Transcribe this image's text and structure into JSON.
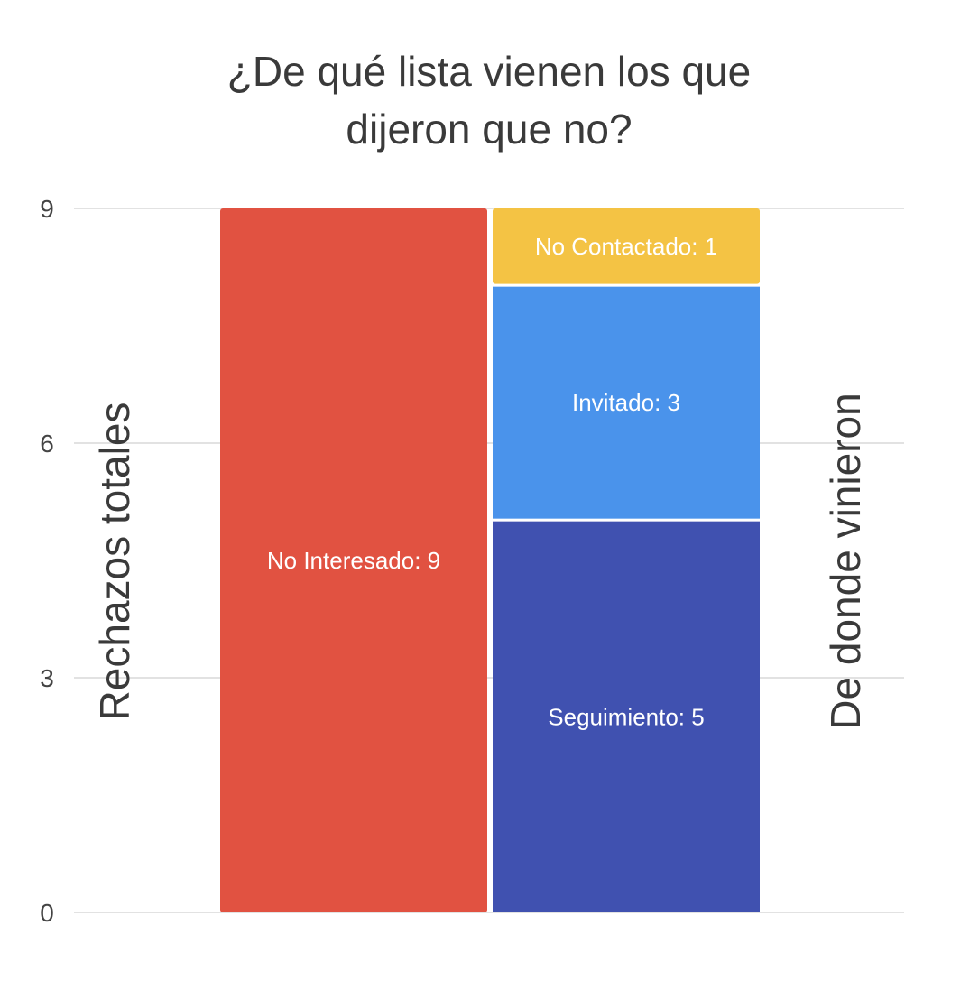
{
  "chart_data": {
    "type": "bar",
    "stacked": true,
    "title_lines": [
      "¿De qué lista vienen los que",
      "dijeron que no?"
    ],
    "ylabel_left": "Rechazos totales",
    "ylabel_right": "De donde vinieron",
    "ylim": [
      0,
      9
    ],
    "yticks": [
      0,
      3,
      6,
      9
    ],
    "grid": true,
    "legend": "none",
    "bars": [
      {
        "segments": [
          {
            "name": "No Interesado",
            "value": 9,
            "label": "No Interesado: 9",
            "color": "#E15241"
          }
        ]
      },
      {
        "segments": [
          {
            "name": "Seguimiento",
            "value": 5,
            "label": "Seguimiento: 5",
            "color": "#4051B0"
          },
          {
            "name": "Invitado",
            "value": 3,
            "label": "Invitado: 3",
            "color": "#4A93EB"
          },
          {
            "name": "No Contactado",
            "value": 1,
            "label": "No Contactado: 1",
            "color": "#F4C344"
          }
        ]
      }
    ]
  }
}
